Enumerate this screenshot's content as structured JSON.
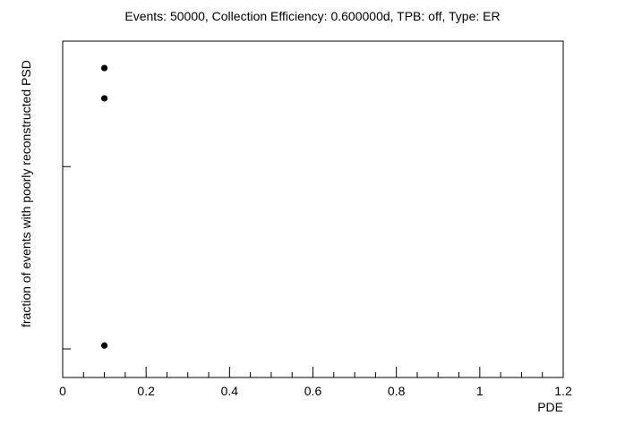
{
  "chart_data": {
    "type": "scatter",
    "title": "Events: 50000, Collection Efficiency: 0.600000d, TPB: off, Type: ER",
    "xlabel": "PDE",
    "ylabel": "fraction of events with poorly reconstructed PSD",
    "xlim": [
      0,
      1.2
    ],
    "x_ticks": [
      "0",
      "0.2",
      "0.4",
      "0.6",
      "0.8",
      "1",
      "1.2"
    ],
    "y_scale": "unlabeled",
    "grid": false,
    "legend": "none",
    "series": [
      {
        "x": [
          0.1,
          0.1,
          0.1
        ],
        "y_fraction_of_axis": [
          0.92,
          0.83,
          0.095
        ]
      }
    ],
    "colors": {
      "marker": "#000000",
      "axes": "#000000"
    }
  }
}
